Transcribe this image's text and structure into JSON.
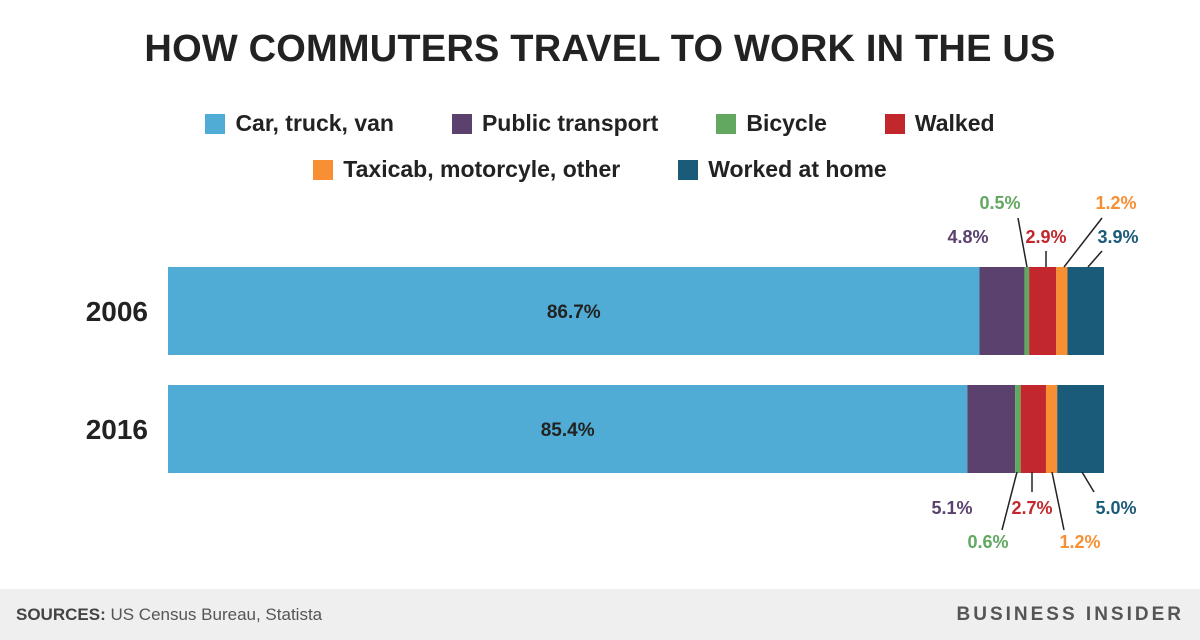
{
  "title": "HOW COMMUTERS TRAVEL TO WORK IN THE US",
  "legend": [
    {
      "label": "Car, truck, van",
      "color": "#51acd5"
    },
    {
      "label": "Public transport",
      "color": "#5b416d"
    },
    {
      "label": "Bicycle",
      "color": "#62a861"
    },
    {
      "label": "Walked",
      "color": "#c1272d"
    },
    {
      "label": "Taxicab, motorcyle, other",
      "color": "#f89033"
    },
    {
      "label": "Worked at home",
      "color": "#1b5b7a"
    }
  ],
  "chart_data": {
    "type": "bar",
    "orientation": "horizontal",
    "stacked": true,
    "title": "HOW COMMUTERS TRAVEL TO WORK IN THE US",
    "categories": [
      "2006",
      "2016"
    ],
    "series": [
      {
        "name": "Car, truck, van",
        "values": [
          86.7,
          85.4
        ],
        "labels": [
          "86.7%",
          "85.4%"
        ]
      },
      {
        "name": "Public transport",
        "values": [
          4.8,
          5.1
        ],
        "labels": [
          "4.8%",
          "5.1%"
        ]
      },
      {
        "name": "Bicycle",
        "values": [
          0.5,
          0.6
        ],
        "labels": [
          "0.5%",
          "0.6%"
        ]
      },
      {
        "name": "Walked",
        "values": [
          2.9,
          2.7
        ],
        "labels": [
          "2.9%",
          "2.7%"
        ]
      },
      {
        "name": "Taxicab, motorcyle, other",
        "values": [
          1.2,
          1.2
        ],
        "labels": [
          "1.2%",
          "1.2%"
        ]
      },
      {
        "name": "Worked at home",
        "values": [
          3.9,
          5.0
        ],
        "labels": [
          "3.9%",
          "5.0%"
        ]
      }
    ],
    "xlim": [
      0,
      100
    ]
  },
  "footer": {
    "sources_label": "SOURCES:",
    "sources_text": " US Census Bureau, Statista",
    "brand": "BUSINESS INSIDER"
  }
}
